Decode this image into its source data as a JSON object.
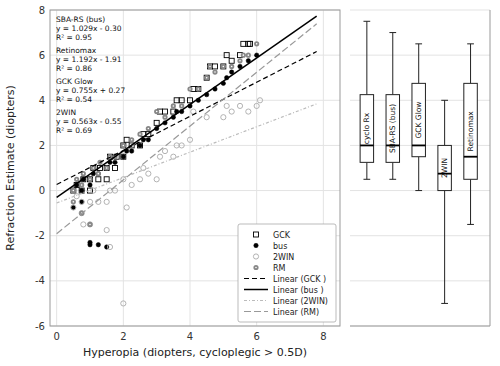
{
  "chart_data": [
    {
      "type": "scatter",
      "xlabel": "Hyperopia (diopters, cycloplegic > 0.5D)",
      "ylabel": "Refraction Estimate (diopters)",
      "xlim": [
        -0.2,
        8.5
      ],
      "xticks": [
        0,
        2,
        4,
        6,
        8
      ],
      "ylim": [
        -6,
        8
      ],
      "yticks": [
        -6,
        -4,
        -2,
        0,
        2,
        4,
        6,
        8
      ],
      "grid": true,
      "legend": "lower right",
      "series": [
        {
          "name": "GCK",
          "type": "scatter",
          "color": "black",
          "marker": "square-open",
          "x": [
            0.5,
            0.6,
            0.75,
            0.8,
            1.0,
            1.0,
            1.1,
            1.25,
            1.3,
            1.5,
            1.5,
            1.6,
            1.75,
            1.8,
            2.0,
            2.0,
            2.1,
            2.25,
            2.5,
            2.6,
            2.75,
            3.0,
            3.1,
            3.25,
            3.5,
            3.6,
            3.75,
            4.0,
            4.1,
            4.25,
            4.5,
            4.6,
            4.75,
            5.0,
            5.1,
            5.25,
            5.5,
            5.6,
            5.75,
            5.8
          ],
          "values": [
            0.0,
            0.25,
            0.0,
            0.5,
            0.0,
            0.5,
            1.0,
            0.5,
            1.0,
            0.5,
            1.0,
            1.5,
            1.0,
            1.5,
            1.5,
            2.0,
            2.25,
            2.0,
            2.0,
            2.5,
            2.5,
            3.0,
            3.5,
            3.5,
            3.5,
            4.0,
            4.0,
            4.0,
            4.5,
            4.5,
            5.0,
            5.5,
            5.5,
            5.5,
            6.0,
            5.75,
            6.0,
            6.5,
            6.5,
            6.5
          ]
        },
        {
          "name": "bus",
          "type": "scatter",
          "color": "black",
          "marker": "circle",
          "x": [
            0.5,
            0.6,
            0.75,
            0.8,
            1.0,
            1.1,
            1.25,
            1.5,
            1.6,
            1.75,
            2.0,
            2.1,
            2.25,
            2.5,
            2.6,
            2.75,
            3.0,
            3.25,
            3.5,
            3.6,
            3.75,
            4.0,
            4.25,
            4.5,
            4.75,
            5.0,
            5.1,
            5.25,
            5.5,
            5.75,
            6.0,
            0.5,
            0.75,
            1.0,
            1.0,
            1.25,
            1.5
          ],
          "values": [
            0.0,
            0.25,
            0.0,
            0.5,
            0.25,
            0.75,
            0.75,
            1.0,
            1.25,
            1.25,
            1.5,
            1.75,
            1.75,
            2.0,
            2.25,
            2.25,
            2.75,
            3.0,
            3.25,
            3.5,
            3.5,
            3.75,
            4.0,
            4.25,
            4.5,
            4.75,
            5.0,
            5.25,
            5.5,
            5.75,
            6.0,
            -0.75,
            -0.5,
            -2.3,
            -2.4,
            -2.4,
            -2.5
          ]
        },
        {
          "name": "2WIN",
          "type": "scatter",
          "color": "#aaaaaa",
          "marker": "circle-open",
          "x": [
            0.5,
            0.6,
            0.75,
            1.0,
            1.1,
            1.25,
            1.5,
            1.6,
            1.75,
            2.0,
            2.1,
            2.25,
            2.5,
            2.6,
            2.75,
            3.0,
            3.1,
            3.25,
            3.5,
            3.6,
            3.75,
            4.0,
            4.1,
            4.5,
            5.0,
            5.1,
            5.25,
            5.5,
            5.75,
            6.0,
            6.1,
            0.5,
            0.75,
            0.8,
            1.0,
            1.5,
            1.6,
            2.0
          ],
          "values": [
            0.0,
            -0.25,
            -0.5,
            -0.5,
            0.0,
            -0.5,
            -0.5,
            0.0,
            0.0,
            0.5,
            -0.75,
            0.25,
            0.5,
            1.0,
            0.75,
            0.5,
            1.5,
            1.75,
            1.5,
            2.0,
            2.0,
            2.25,
            3.5,
            3.25,
            3.25,
            3.75,
            3.5,
            3.75,
            3.5,
            3.75,
            4.0,
            -0.75,
            -1.0,
            -1.5,
            -1.5,
            -1.75,
            -2.5,
            -5.0
          ]
        },
        {
          "name": "RM",
          "type": "scatter",
          "color": "#888888",
          "marker": "circle-dot",
          "x": [
            0.5,
            0.6,
            0.75,
            0.8,
            1.0,
            1.1,
            1.25,
            1.3,
            1.5,
            1.6,
            1.75,
            2.0,
            2.25,
            2.5,
            2.75,
            3.0,
            3.25,
            3.5,
            3.75,
            4.0,
            4.25,
            4.5,
            4.6,
            4.75,
            5.0,
            5.25,
            5.5,
            5.6,
            5.75,
            6.0,
            0.5,
            0.75,
            1.0
          ],
          "values": [
            0.0,
            0.5,
            0.25,
            0.75,
            0.5,
            1.0,
            0.75,
            1.25,
            1.0,
            1.5,
            1.5,
            2.0,
            2.25,
            2.5,
            2.75,
            3.5,
            3.25,
            3.75,
            3.75,
            4.5,
            4.5,
            5.0,
            5.5,
            5.25,
            5.5,
            5.5,
            5.75,
            6.0,
            6.0,
            6.5,
            -0.5,
            -1.0,
            -1.5
          ]
        },
        {
          "name": "Linear (GCK )",
          "type": "line",
          "color": "black",
          "line_style": "dashed",
          "x": [
            0,
            7.8
          ],
          "values": [
            0.27,
            6.159
          ]
        },
        {
          "name": "Linear (bus )",
          "type": "line",
          "color": "black",
          "line_style": "solid",
          "x": [
            0,
            7.8
          ],
          "values": [
            -0.3,
            7.7262
          ]
        },
        {
          "name": "Linear (2WIN)",
          "type": "line",
          "color": "#bbbbbb",
          "line_style": "dash-dot",
          "x": [
            0,
            7.8
          ],
          "values": [
            -0.55,
            3.8414
          ]
        },
        {
          "name": "Linear (RM)",
          "type": "line",
          "color": "#999999",
          "line_style": "long-dash",
          "x": [
            0,
            7.8
          ],
          "values": [
            -1.91,
            7.3876
          ]
        }
      ],
      "annotations": [
        "SBA-RS (bus)\ny = 1.029x - 0.30\nR² = 0.95",
        "Retinomax\ny = 1.192x - 1.91\nR² = 0.86",
        "GCK Glow\ny = 0.755x + 0.27\nR² = 0.54",
        "2WIN\ny = 0.563x - 0.55\nR² = 0.69"
      ]
    },
    {
      "type": "box",
      "categories": [
        "cyclo Rx",
        "SBA-RS (bus)",
        "GCK Glow",
        "2WIN",
        "Retinomax"
      ],
      "boxes": [
        {
          "median": 2.0,
          "q1": 1.25,
          "q3": 4.25,
          "whisker_low": 0.5,
          "whisker_high": 7.5
        },
        {
          "median": 2.0,
          "q1": 1.25,
          "q3": 4.25,
          "whisker_low": 0.5,
          "whisker_high": 7.0
        },
        {
          "median": 2.0,
          "q1": 1.5,
          "q3": 4.75,
          "whisker_low": 0.0,
          "whisker_high": 6.5
        },
        {
          "median": 0.75,
          "q1": 0.0,
          "q3": 2.0,
          "whisker_low": -5.0,
          "whisker_high": 4.0
        },
        {
          "median": 1.5,
          "q1": 0.5,
          "q3": 4.75,
          "whisker_low": -1.5,
          "whisker_high": 6.5
        }
      ],
      "ylim": [
        -6,
        8
      ],
      "yticks": [
        -6,
        -4,
        -2,
        0,
        2,
        4,
        6,
        8
      ],
      "grid": true,
      "tick_labels": false
    }
  ]
}
